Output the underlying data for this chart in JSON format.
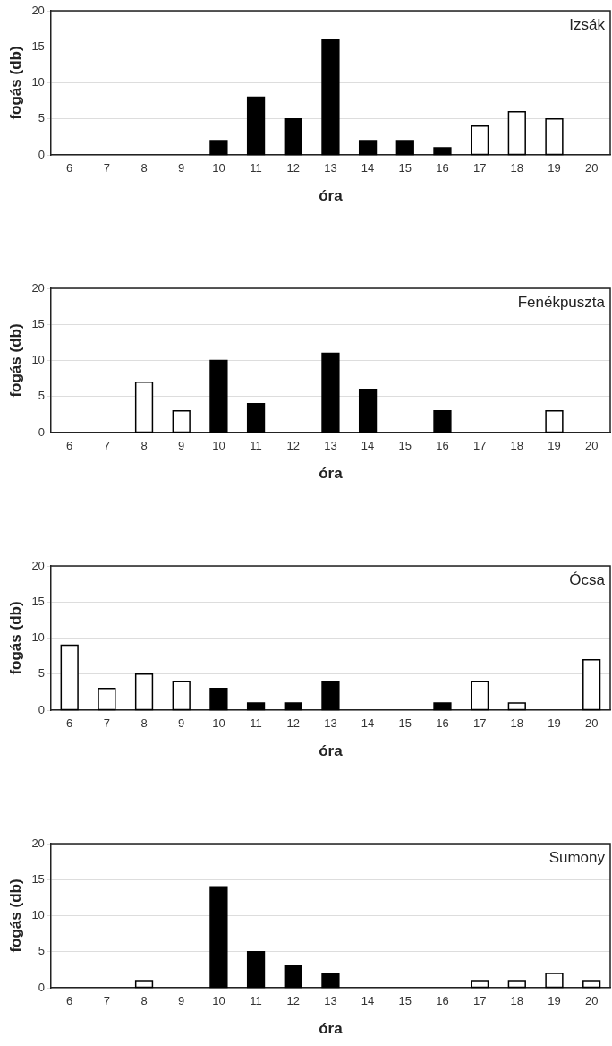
{
  "chart_data": [
    {
      "type": "bar",
      "title": "Izsák",
      "xlabel": "óra",
      "ylabel": "fogás (db)",
      "categories": [
        "6",
        "7",
        "8",
        "9",
        "10",
        "11",
        "12",
        "13",
        "14",
        "15",
        "16",
        "17",
        "18",
        "19",
        "20"
      ],
      "values": [
        0,
        0,
        0,
        0,
        2,
        8,
        5,
        16,
        2,
        2,
        1,
        4,
        6,
        5,
        0
      ],
      "colors": [
        "#000000",
        "#000000",
        "#000000",
        "#000000",
        "#000000",
        "#000000",
        "#000000",
        "#000000",
        "#000000",
        "#000000",
        "#000000",
        "#ffffff",
        "#ffffff",
        "#ffffff",
        "#ffffff"
      ],
      "ylim": [
        0,
        20
      ],
      "yticks": [
        0,
        5,
        10,
        15,
        20
      ],
      "grid": "y",
      "legend": false
    },
    {
      "type": "bar",
      "title": "Fenékpuszta",
      "xlabel": "óra",
      "ylabel": "fogás (db)",
      "categories": [
        "6",
        "7",
        "8",
        "9",
        "10",
        "11",
        "12",
        "13",
        "14",
        "15",
        "16",
        "17",
        "18",
        "19",
        "20"
      ],
      "values": [
        0,
        0,
        7,
        3,
        10,
        4,
        0,
        11,
        6,
        0,
        3,
        0,
        0,
        3,
        0
      ],
      "colors": [
        "#ffffff",
        "#ffffff",
        "#ffffff",
        "#ffffff",
        "#000000",
        "#000000",
        "#000000",
        "#000000",
        "#000000",
        "#000000",
        "#000000",
        "#ffffff",
        "#ffffff",
        "#ffffff",
        "#ffffff"
      ],
      "ylim": [
        0,
        20
      ],
      "yticks": [
        0,
        5,
        10,
        15,
        20
      ],
      "grid": "y",
      "legend": false
    },
    {
      "type": "bar",
      "title": "Ócsa",
      "xlabel": "óra",
      "ylabel": "fogás (db)",
      "categories": [
        "6",
        "7",
        "8",
        "9",
        "10",
        "11",
        "12",
        "13",
        "14",
        "15",
        "16",
        "17",
        "18",
        "19",
        "20"
      ],
      "values": [
        9,
        3,
        5,
        4,
        3,
        1,
        1,
        4,
        0,
        0,
        1,
        4,
        1,
        0,
        7
      ],
      "colors": [
        "#ffffff",
        "#ffffff",
        "#ffffff",
        "#ffffff",
        "#000000",
        "#000000",
        "#000000",
        "#000000",
        "#000000",
        "#000000",
        "#000000",
        "#ffffff",
        "#ffffff",
        "#ffffff",
        "#ffffff"
      ],
      "ylim": [
        0,
        20
      ],
      "yticks": [
        0,
        5,
        10,
        15,
        20
      ],
      "grid": "y",
      "legend": false
    },
    {
      "type": "bar",
      "title": "Sumony",
      "xlabel": "óra",
      "ylabel": "fogás (db)",
      "categories": [
        "6",
        "7",
        "8",
        "9",
        "10",
        "11",
        "12",
        "13",
        "14",
        "15",
        "16",
        "17",
        "18",
        "19",
        "20"
      ],
      "values": [
        0,
        0,
        1,
        0,
        14,
        5,
        3,
        2,
        0,
        0,
        0,
        1,
        1,
        2,
        1
      ],
      "colors": [
        "#ffffff",
        "#ffffff",
        "#ffffff",
        "#ffffff",
        "#000000",
        "#000000",
        "#000000",
        "#000000",
        "#000000",
        "#000000",
        "#000000",
        "#ffffff",
        "#ffffff",
        "#ffffff",
        "#ffffff"
      ],
      "ylim": [
        0,
        20
      ],
      "yticks": [
        0,
        5,
        10,
        15,
        20
      ],
      "grid": "y",
      "legend": false
    }
  ]
}
